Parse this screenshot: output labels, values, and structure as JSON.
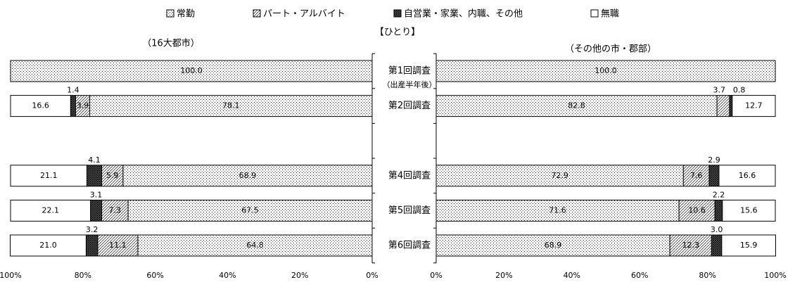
{
  "title": "【ひとり】",
  "legend": [
    {
      "name": "常勤",
      "color": "#000000",
      "pattern": "dots"
    },
    {
      "name": "パート・アルバイト",
      "color": "#000000",
      "pattern": "hatch"
    },
    {
      "name": "自営業・家業、内職、その他",
      "color": "#000000",
      "pattern": "cross"
    },
    {
      "name": "無職",
      "color": "#000000",
      "pattern": "none"
    }
  ],
  "chart_data": [
    {
      "type": "stacked-bar",
      "title": "（16大都市）",
      "series": [
        {
          "values": [
            100,
            78.1,
            null,
            68.9,
            67.5,
            64.8
          ],
          "value_labels": [
            "100.0",
            "78.1",
            null,
            "68.9",
            "67.5",
            "64.8"
          ]
        },
        {
          "values": [
            null,
            3.9,
            null,
            5.9,
            7.3,
            11.1
          ],
          "value_labels": [
            null,
            "3.9",
            null,
            "5.9",
            "7.3",
            "11.1"
          ]
        },
        {
          "values": [
            null,
            1.4,
            null,
            4.1,
            3.1,
            3.2
          ],
          "value_labels": [
            null,
            "1.4",
            null,
            "4.1",
            "3.1",
            "3.2"
          ]
        },
        {
          "values": [
            null,
            16.6,
            null,
            21.1,
            22.1,
            21.0
          ],
          "value_labels": [
            null,
            "16.6",
            null,
            "21.1",
            "22.1",
            "21.0"
          ]
        }
      ],
      "xlim": [
        100,
        0
      ],
      "xticks": [
        {
          "value": 100,
          "label": "100%"
        },
        {
          "value": 80,
          "label": "80%"
        },
        {
          "value": 60,
          "label": "60%"
        },
        {
          "value": 40,
          "label": "40%"
        },
        {
          "value": 20,
          "label": "20%"
        },
        {
          "value": 0,
          "label": "0%"
        }
      ]
    },
    {
      "type": "stacked-bar",
      "title": "（その他の市・郡部）",
      "categories": [
        "第1回調査",
        "第2回調査",
        null,
        "第4回調査",
        "第5回調査",
        "第6回調査"
      ],
      "annotations": [
        "（出産半年後）"
      ],
      "series": [
        {
          "values": [
            100,
            82.8,
            null,
            72.9,
            71.6,
            68.9
          ],
          "value_labels": [
            "100.0",
            "82.8",
            null,
            "72.9",
            "71.6",
            "68.9"
          ]
        },
        {
          "values": [
            null,
            3.7,
            null,
            7.6,
            10.6,
            12.3
          ],
          "value_labels": [
            null,
            "3.7",
            null,
            "7.6",
            "10.6",
            "12.3"
          ]
        },
        {
          "values": [
            null,
            0.8,
            null,
            2.9,
            2.2,
            3.0
          ],
          "value_labels": [
            null,
            "0.8",
            null,
            "2.9",
            "2.2",
            "3.0"
          ]
        },
        {
          "values": [
            null,
            12.7,
            null,
            16.6,
            15.6,
            15.9
          ],
          "value_labels": [
            null,
            "12.7",
            null,
            "16.6",
            "15.6",
            "15.9"
          ]
        }
      ],
      "xlim": [
        0,
        100
      ],
      "xticks": [
        {
          "value": 0,
          "label": "0%"
        },
        {
          "value": 20,
          "label": "20%"
        },
        {
          "value": 40,
          "label": "40%"
        },
        {
          "value": 60,
          "label": "60%"
        },
        {
          "value": 80,
          "label": "80%"
        },
        {
          "value": 100,
          "label": "100%"
        }
      ]
    }
  ]
}
